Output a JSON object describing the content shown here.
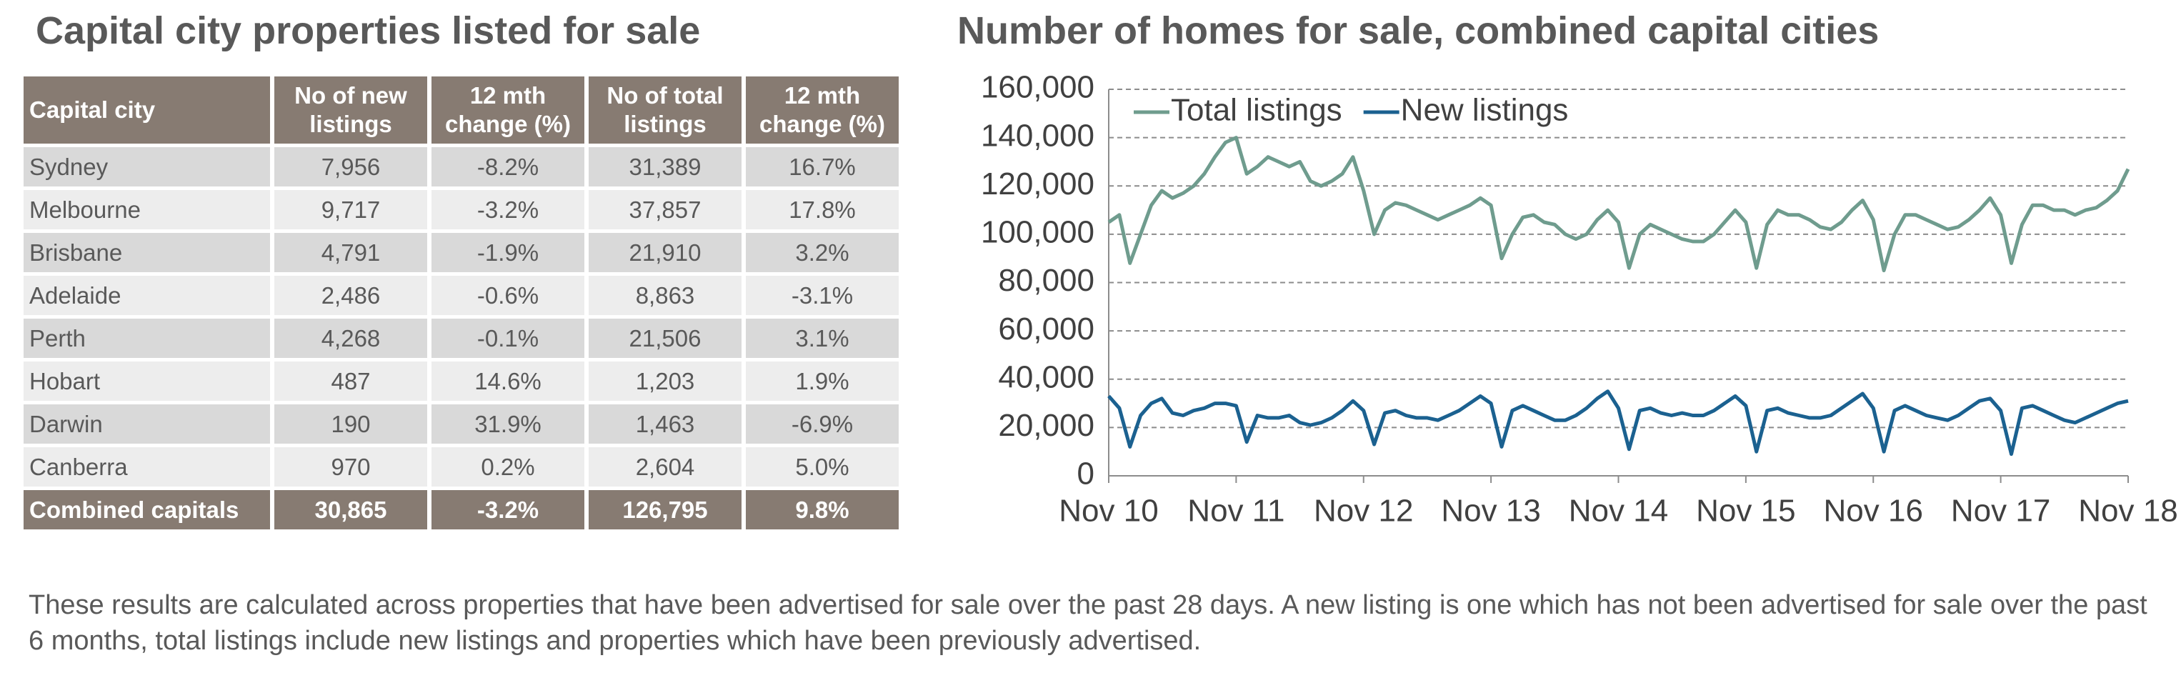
{
  "table": {
    "title": "Capital city properties listed for sale",
    "header": [
      "Capital city",
      "No of new listings",
      "12 mth change (%)",
      "No of total listings",
      "12 mth change (%)"
    ],
    "rows": [
      [
        "Sydney",
        "7,956",
        "-8.2%",
        "31,389",
        "16.7%"
      ],
      [
        "Melbourne",
        "9,717",
        "-3.2%",
        "37,857",
        "17.8%"
      ],
      [
        "Brisbane",
        "4,791",
        "-1.9%",
        "21,910",
        "3.2%"
      ],
      [
        "Adelaide",
        "2,486",
        "-0.6%",
        "8,863",
        "-3.1%"
      ],
      [
        "Perth",
        "4,268",
        "-0.1%",
        "21,506",
        "3.1%"
      ],
      [
        "Hobart",
        "487",
        "14.6%",
        "1,203",
        "1.9%"
      ],
      [
        "Darwin",
        "190",
        "31.9%",
        "1,463",
        "-6.9%"
      ],
      [
        "Canberra",
        "970",
        "0.2%",
        "2,604",
        "5.0%"
      ]
    ],
    "total": [
      "Combined capitals",
      "30,865",
      "-3.2%",
      "126,795",
      "9.8%"
    ]
  },
  "chart_data": {
    "type": "line",
    "title": "Number of homes for sale, combined capital cities",
    "categories": [
      "Nov 10",
      null,
      null,
      null,
      null,
      null,
      null,
      null,
      null,
      null,
      null,
      null,
      "Nov 11",
      null,
      null,
      null,
      null,
      null,
      null,
      null,
      null,
      null,
      null,
      null,
      "Nov 12",
      null,
      null,
      null,
      null,
      null,
      null,
      null,
      null,
      null,
      null,
      null,
      "Nov 13",
      null,
      null,
      null,
      null,
      null,
      null,
      null,
      null,
      null,
      null,
      null,
      "Nov 14",
      null,
      null,
      null,
      null,
      null,
      null,
      null,
      null,
      null,
      null,
      null,
      "Nov 15",
      null,
      null,
      null,
      null,
      null,
      null,
      null,
      null,
      null,
      null,
      null,
      "Nov 16",
      null,
      null,
      null,
      null,
      null,
      null,
      null,
      null,
      null,
      null,
      null,
      "Nov 17",
      null,
      null,
      null,
      null,
      null,
      null,
      null,
      null,
      null,
      null,
      null,
      "Nov 18"
    ],
    "series": [
      {
        "name": "Total listings",
        "color": "#6f9c8e",
        "values": [
          105000,
          108000,
          88000,
          100000,
          112000,
          118000,
          115000,
          117000,
          120000,
          125000,
          132000,
          138000,
          140000,
          125000,
          128000,
          132000,
          130000,
          128000,
          130000,
          122000,
          120000,
          122000,
          125000,
          132000,
          118000,
          100000,
          110000,
          113000,
          112000,
          110000,
          108000,
          106000,
          108000,
          110000,
          112000,
          115000,
          112000,
          90000,
          100000,
          107000,
          108000,
          105000,
          104000,
          100000,
          98000,
          100000,
          106000,
          110000,
          105000,
          86000,
          100000,
          104000,
          102000,
          100000,
          98000,
          97000,
          97000,
          100000,
          105000,
          110000,
          105000,
          86000,
          104000,
          110000,
          108000,
          108000,
          106000,
          103000,
          102000,
          105000,
          110000,
          114000,
          106000,
          85000,
          100000,
          108000,
          108000,
          106000,
          104000,
          102000,
          103000,
          106000,
          110000,
          115000,
          108000,
          88000,
          104000,
          112000,
          112000,
          110000,
          110000,
          108000,
          110000,
          111000,
          114000,
          118000,
          127000
        ]
      },
      {
        "name": "New listings",
        "color": "#1b6190",
        "values": [
          33000,
          28000,
          12000,
          25000,
          30000,
          32000,
          26000,
          25000,
          27000,
          28000,
          30000,
          30000,
          29000,
          14000,
          25000,
          24000,
          24000,
          25000,
          22000,
          21000,
          22000,
          24000,
          27000,
          31000,
          27000,
          13000,
          26000,
          27000,
          25000,
          24000,
          24000,
          23000,
          25000,
          27000,
          30000,
          33000,
          30000,
          12000,
          27000,
          29000,
          27000,
          25000,
          23000,
          23000,
          25000,
          28000,
          32000,
          35000,
          28000,
          11000,
          27000,
          28000,
          26000,
          25000,
          26000,
          25000,
          25000,
          27000,
          30000,
          33000,
          29000,
          10000,
          27000,
          28000,
          26000,
          25000,
          24000,
          24000,
          25000,
          28000,
          31000,
          34000,
          28000,
          10000,
          27000,
          29000,
          27000,
          25000,
          24000,
          23000,
          25000,
          28000,
          31000,
          32000,
          27000,
          9000,
          28000,
          29000,
          27000,
          25000,
          23000,
          22000,
          24000,
          26000,
          28000,
          30000,
          31000
        ]
      }
    ],
    "ylim": [
      0,
      160000
    ],
    "yticks": [
      0,
      {
        "value": 20000,
        "label": "20,000"
      },
      {
        "value": 40000,
        "label": "40,000"
      },
      {
        "value": 60000,
        "label": "60,000"
      },
      {
        "value": 80000,
        "label": "80,000"
      },
      {
        "value": 100000,
        "label": "100,000"
      },
      {
        "value": 120000,
        "label": "120,000"
      },
      {
        "value": 140000,
        "label": "140,000"
      },
      {
        "value": 160000,
        "label": "160,000"
      }
    ],
    "grid": true,
    "legend": "top-left"
  },
  "note": "These results are calculated across properties that have been advertised for sale over the past 28 days.  A new listing is one which has not been advertised for sale over the past 6 months, total listings include new listings and properties which have been previously advertised."
}
